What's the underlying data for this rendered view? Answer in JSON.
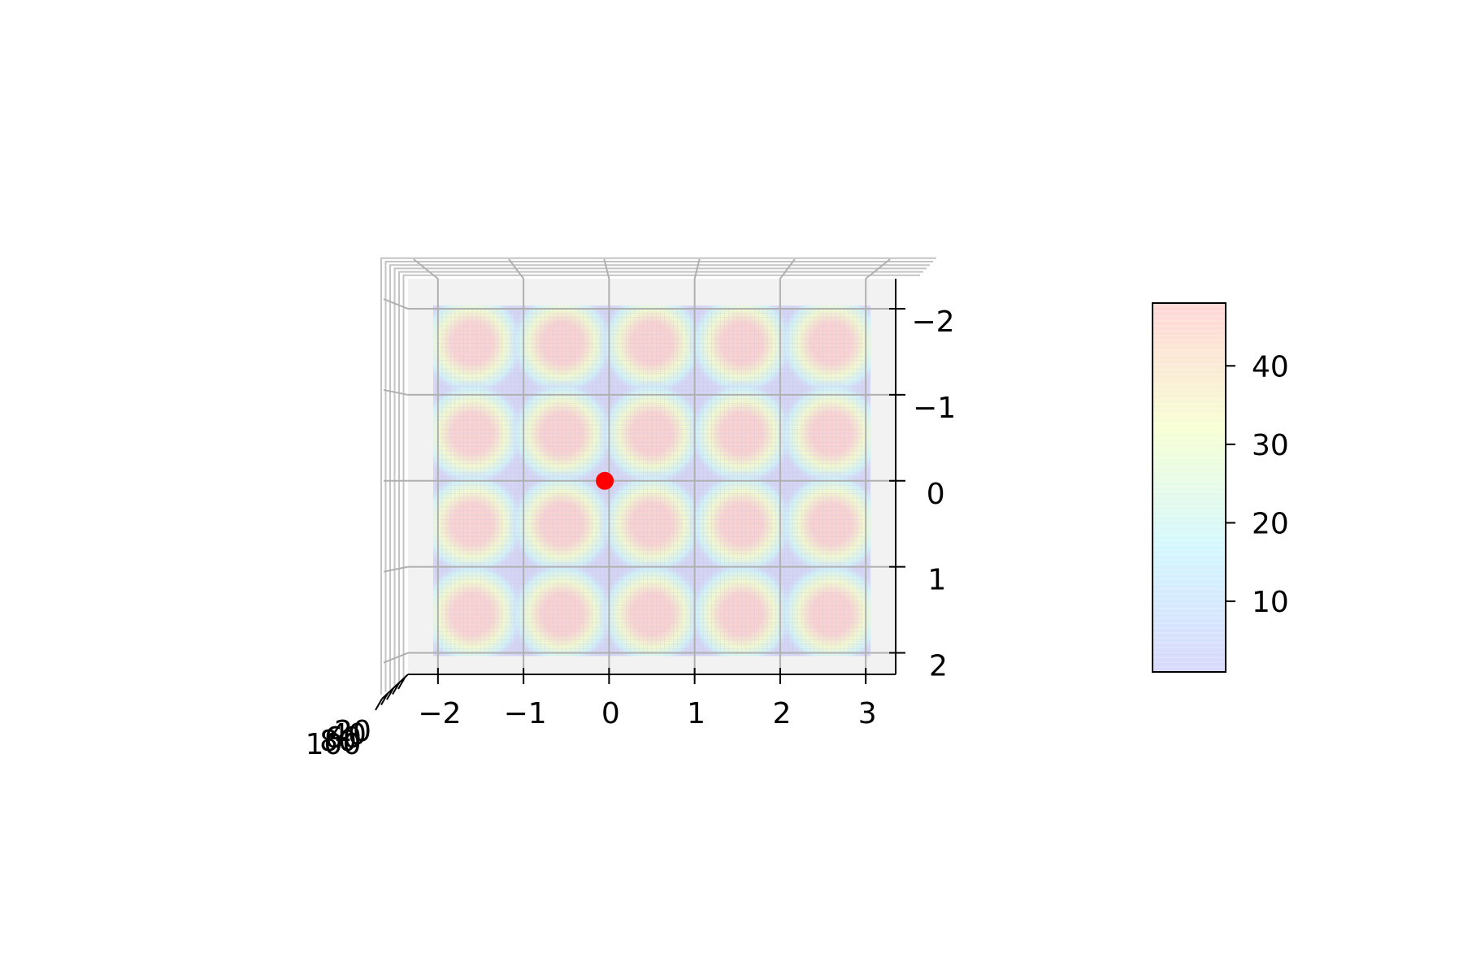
{
  "chart_data": {
    "type": "surface3d",
    "title": "",
    "xlabel": "",
    "ylabel": "",
    "zlabel": "",
    "view": "top-down",
    "x_ticks": [
      "−2",
      "−1",
      "0",
      "1",
      "2",
      "3"
    ],
    "y_ticks": [
      "−2",
      "−1",
      "0",
      "1",
      "2"
    ],
    "z_ticks": [
      "20",
      "40",
      "60",
      "80",
      "100"
    ],
    "xlim": [
      -2.35,
      3.35
    ],
    "ylim": [
      -2.35,
      2.25
    ],
    "surface": {
      "x_range": [
        -2.0,
        3.0
      ],
      "y_range": [
        -2.0,
        2.0
      ],
      "peaks_x": [
        -1.6,
        -0.55,
        0.5,
        1.55,
        2.6
      ],
      "peaks_y": [
        -1.6,
        -0.55,
        0.5,
        1.55
      ],
      "troughs_x": [
        -2.0,
        -1.0,
        0.0,
        1.0,
        2.0,
        3.0
      ],
      "troughs_y": [
        -2.0,
        -1.0,
        0.0,
        1.0,
        2.0
      ],
      "colormap": [
        "#b8b8f8",
        "#b0f0ff",
        "#f0ffb0",
        "#ffb4b4"
      ],
      "opacity": 0.5
    },
    "marker": {
      "x": -0.05,
      "y": 0.0,
      "color": "#ff0000"
    },
    "colorbar": {
      "ticks": [
        10,
        20,
        30,
        40
      ],
      "tick_labels": [
        "10",
        "20",
        "30",
        "40"
      ],
      "range": [
        1,
        48
      ]
    },
    "grid": true,
    "pane_color": "#f2f2f2"
  }
}
